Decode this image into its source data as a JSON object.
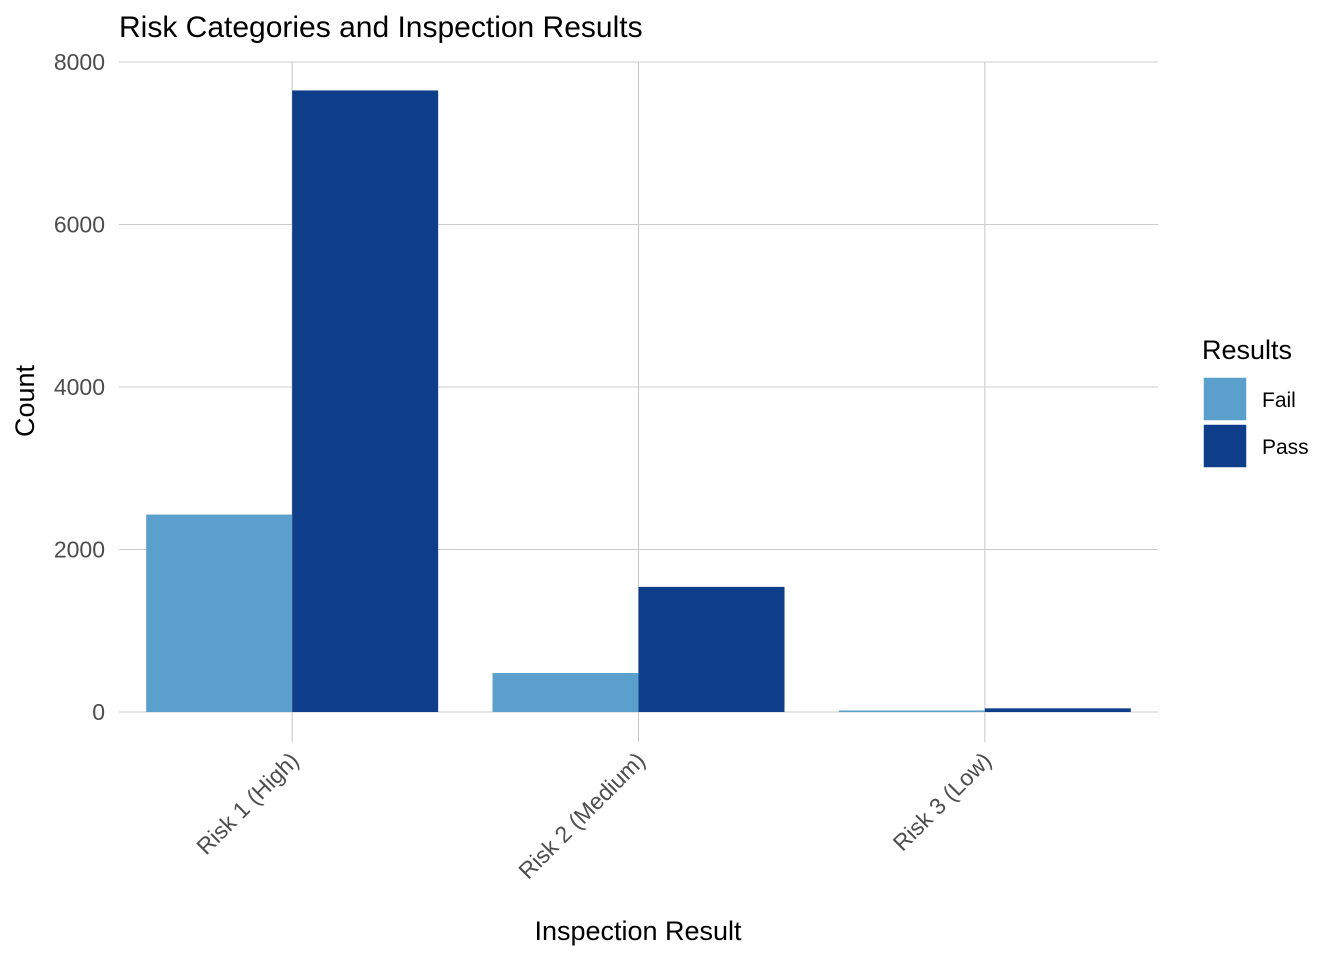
{
  "chart_data": {
    "type": "bar",
    "title": "Risk Categories and Inspection Results",
    "xlabel": "Inspection Result",
    "ylabel": "Count",
    "categories": [
      "Risk 1 (High)",
      "Risk 2 (Medium)",
      "Risk 3 (Low)"
    ],
    "series": [
      {
        "name": "Fail",
        "values": [
          2430,
          480,
          15
        ],
        "color": "#5b9fcc"
      },
      {
        "name": "Pass",
        "values": [
          7650,
          1540,
          45
        ],
        "color": "#0e3e8a"
      }
    ],
    "ylim": [
      0,
      8000
    ],
    "yticks": [
      0,
      2000,
      4000,
      6000,
      8000
    ],
    "grid": true,
    "legend": {
      "title": "Results",
      "placement": "right"
    }
  }
}
